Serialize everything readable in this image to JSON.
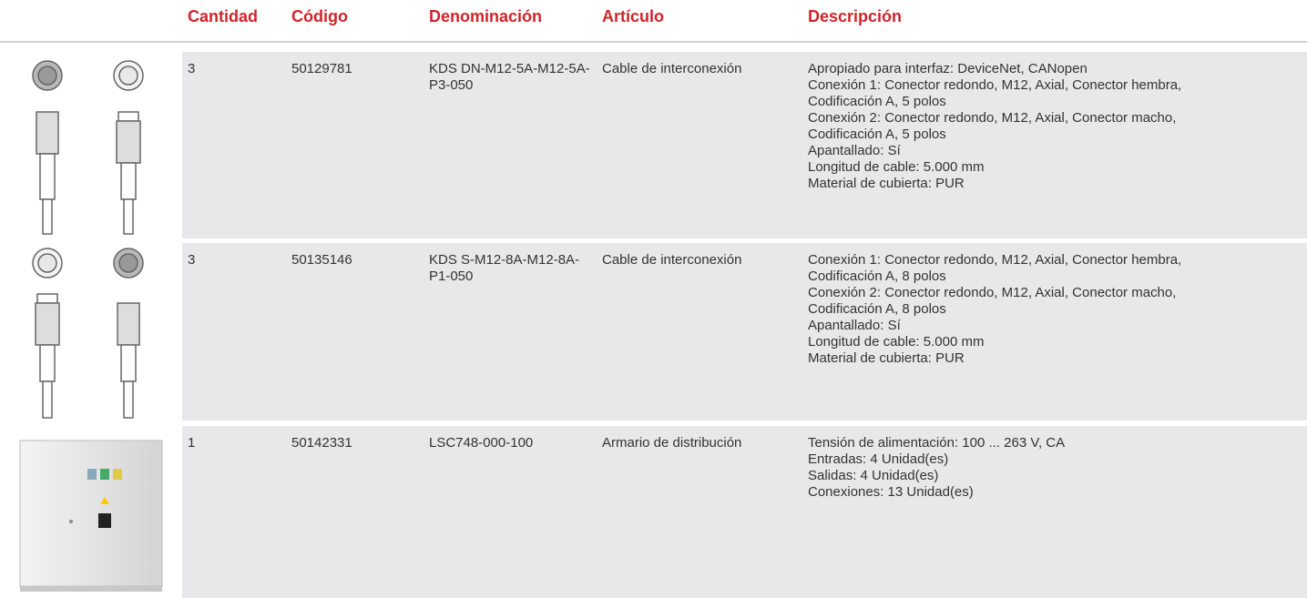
{
  "table": {
    "headers": [
      "Cantidad",
      "Código",
      "Denominación",
      "Artículo",
      "Descripción"
    ],
    "rows": [
      {
        "cantidad": "3",
        "codigo": "50129781",
        "denominacion": "KDS DN-M12-5A-M12-5A-P3-050",
        "articulo": "Cable de interconexión",
        "descripcion": [
          "Apropiado para interfaz: DeviceNet, CANopen",
          "Conexión 1: Conector redondo, M12, Axial, Conector hembra, Codificación A, 5 polos",
          "Conexión 2: Conector redondo, M12, Axial, Conector macho, Codificación A, 5 polos",
          "Apantallado: Sí",
          "Longitud de cable: 5.000 mm",
          "Material de cubierta: PUR"
        ]
      },
      {
        "cantidad": "3",
        "codigo": "50135146",
        "denominacion": "KDS S-M12-8A-M12-8A-P1-050",
        "articulo": "Cable de interconexión",
        "descripcion": [
          "Conexión 1: Conector redondo, M12, Axial, Conector hembra, Codificación A, 8 polos",
          "Conexión 2: Conector redondo, M12, Axial, Conector macho, Codificación A, 8 polos",
          "Apantallado: Sí",
          "Longitud de cable: 5.000 mm",
          "Material de cubierta: PUR"
        ]
      },
      {
        "cantidad": "1",
        "codigo": "50142331",
        "denominacion": "LSC748-000-100",
        "articulo": "Armario de distribución",
        "descripcion": [
          "Tensión de alimentación: 100 ... 263 V, CA",
          "Entradas: 4 Unidad(es)",
          "Salidas: 4 Unidad(es)",
          "Conexiones: 13 Unidad(es)"
        ]
      }
    ]
  }
}
